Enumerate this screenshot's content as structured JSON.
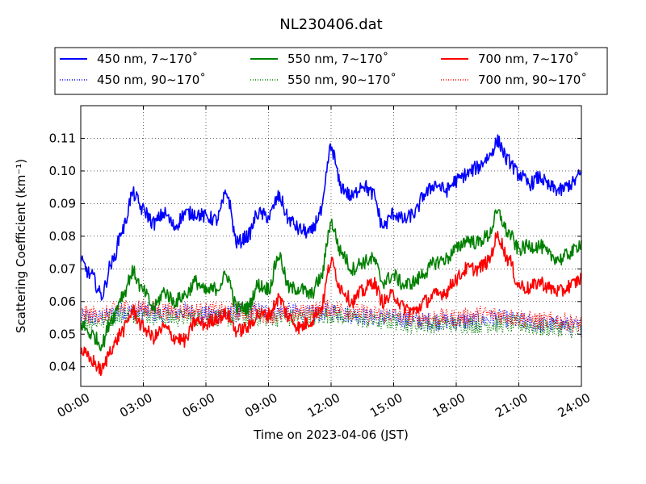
{
  "chart_data": {
    "type": "line",
    "title": "NL230406.dat",
    "xlabel": "Time on 2023-04-06 (JST)",
    "ylabel": "Scattering Coefficient (km⁻¹)",
    "xlim": [
      "00:00",
      "24:00"
    ],
    "ylim": [
      0.034,
      0.12
    ],
    "x_ticks": [
      "00:00",
      "03:00",
      "06:00",
      "09:00",
      "12:00",
      "15:00",
      "18:00",
      "21:00",
      "24:00"
    ],
    "y_ticks": [
      "0.04",
      "0.05",
      "0.06",
      "0.07",
      "0.08",
      "0.09",
      "0.10",
      "0.11"
    ],
    "grid": true,
    "legend_position": "top",
    "series": [
      {
        "name": "450 nm, 7∼170˚",
        "color": "#0000ff",
        "style": "solid",
        "x": [
          "00:00",
          "00:30",
          "01:00",
          "01:30",
          "02:00",
          "02:30",
          "03:00",
          "03:30",
          "04:00",
          "04:30",
          "05:00",
          "05:30",
          "06:00",
          "06:30",
          "07:00",
          "07:30",
          "08:00",
          "08:30",
          "09:00",
          "09:30",
          "10:00",
          "10:30",
          "11:00",
          "11:30",
          "12:00",
          "12:30",
          "13:00",
          "13:30",
          "14:00",
          "14:30",
          "15:00",
          "15:30",
          "16:00",
          "16:30",
          "17:00",
          "17:30",
          "18:00",
          "18:30",
          "19:00",
          "19:30",
          "20:00",
          "20:30",
          "21:00",
          "21:30",
          "22:00",
          "22:30",
          "23:00",
          "23:30",
          "24:00"
        ],
        "values": [
          0.072,
          0.068,
          0.062,
          0.072,
          0.082,
          0.093,
          0.088,
          0.084,
          0.087,
          0.083,
          0.087,
          0.087,
          0.086,
          0.085,
          0.093,
          0.078,
          0.08,
          0.087,
          0.086,
          0.092,
          0.085,
          0.082,
          0.081,
          0.087,
          0.107,
          0.095,
          0.092,
          0.096,
          0.093,
          0.083,
          0.087,
          0.085,
          0.087,
          0.093,
          0.096,
          0.094,
          0.097,
          0.099,
          0.101,
          0.104,
          0.109,
          0.103,
          0.099,
          0.096,
          0.098,
          0.095,
          0.094,
          0.096,
          0.099
        ]
      },
      {
        "name": "550 nm, 7∼170˚",
        "color": "#008000",
        "style": "solid",
        "x": [
          "00:00",
          "00:30",
          "01:00",
          "01:30",
          "02:00",
          "02:30",
          "03:00",
          "03:30",
          "04:00",
          "04:30",
          "05:00",
          "05:30",
          "06:00",
          "06:30",
          "07:00",
          "07:30",
          "08:00",
          "08:30",
          "09:00",
          "09:30",
          "10:00",
          "10:30",
          "11:00",
          "11:30",
          "12:00",
          "12:30",
          "13:00",
          "13:30",
          "14:00",
          "14:30",
          "15:00",
          "15:30",
          "16:00",
          "16:30",
          "17:00",
          "17:30",
          "18:00",
          "18:30",
          "19:00",
          "19:30",
          "20:00",
          "20:30",
          "21:00",
          "21:30",
          "22:00",
          "22:30",
          "23:00",
          "23:30",
          "24:00"
        ],
        "values": [
          0.053,
          0.05,
          0.047,
          0.055,
          0.062,
          0.069,
          0.063,
          0.058,
          0.063,
          0.06,
          0.062,
          0.066,
          0.063,
          0.064,
          0.068,
          0.058,
          0.058,
          0.065,
          0.064,
          0.074,
          0.064,
          0.064,
          0.062,
          0.067,
          0.084,
          0.075,
          0.07,
          0.072,
          0.073,
          0.066,
          0.068,
          0.065,
          0.066,
          0.069,
          0.072,
          0.073,
          0.076,
          0.079,
          0.078,
          0.08,
          0.087,
          0.081,
          0.076,
          0.077,
          0.077,
          0.074,
          0.073,
          0.075,
          0.078
        ]
      },
      {
        "name": "700 nm, 7∼170˚",
        "color": "#ff0000",
        "style": "solid",
        "x": [
          "00:00",
          "00:30",
          "01:00",
          "01:30",
          "02:00",
          "02:30",
          "03:00",
          "03:30",
          "04:00",
          "04:30",
          "05:00",
          "05:30",
          "06:00",
          "06:30",
          "07:00",
          "07:30",
          "08:00",
          "08:30",
          "09:00",
          "09:30",
          "10:00",
          "10:30",
          "11:00",
          "11:30",
          "12:00",
          "12:30",
          "13:00",
          "13:30",
          "14:00",
          "14:30",
          "15:00",
          "15:30",
          "16:00",
          "16:30",
          "17:00",
          "17:30",
          "18:00",
          "18:30",
          "19:00",
          "19:30",
          "20:00",
          "20:30",
          "21:00",
          "21:30",
          "22:00",
          "22:30",
          "23:00",
          "23:30",
          "24:00"
        ],
        "values": [
          0.045,
          0.042,
          0.039,
          0.046,
          0.051,
          0.057,
          0.052,
          0.049,
          0.052,
          0.049,
          0.048,
          0.054,
          0.053,
          0.055,
          0.056,
          0.051,
          0.052,
          0.056,
          0.056,
          0.061,
          0.055,
          0.052,
          0.054,
          0.058,
          0.072,
          0.064,
          0.06,
          0.063,
          0.066,
          0.06,
          0.062,
          0.058,
          0.057,
          0.06,
          0.062,
          0.063,
          0.067,
          0.07,
          0.07,
          0.072,
          0.08,
          0.073,
          0.065,
          0.064,
          0.066,
          0.064,
          0.063,
          0.065,
          0.067
        ]
      },
      {
        "name": "450 nm, 90∼170˚",
        "color": "#0000ff",
        "style": "dotted",
        "x": [
          "00:00",
          "01:00",
          "02:00",
          "03:00",
          "04:00",
          "05:00",
          "06:00",
          "07:00",
          "08:00",
          "09:00",
          "10:00",
          "11:00",
          "12:00",
          "13:00",
          "14:00",
          "15:00",
          "16:00",
          "17:00",
          "18:00",
          "19:00",
          "20:00",
          "21:00",
          "22:00",
          "23:00",
          "24:00"
        ],
        "values": [
          0.055,
          0.055,
          0.057,
          0.057,
          0.056,
          0.057,
          0.056,
          0.056,
          0.057,
          0.057,
          0.057,
          0.056,
          0.057,
          0.056,
          0.055,
          0.055,
          0.054,
          0.054,
          0.054,
          0.054,
          0.055,
          0.054,
          0.053,
          0.053,
          0.052
        ]
      },
      {
        "name": "550 nm, 90∼170˚",
        "color": "#008000",
        "style": "dotted",
        "x": [
          "00:00",
          "01:00",
          "02:00",
          "03:00",
          "04:00",
          "05:00",
          "06:00",
          "07:00",
          "08:00",
          "09:00",
          "10:00",
          "11:00",
          "12:00",
          "13:00",
          "14:00",
          "15:00",
          "16:00",
          "17:00",
          "18:00",
          "19:00",
          "20:00",
          "21:00",
          "22:00",
          "23:00",
          "24:00"
        ],
        "values": [
          0.054,
          0.054,
          0.056,
          0.056,
          0.055,
          0.055,
          0.055,
          0.055,
          0.055,
          0.055,
          0.055,
          0.055,
          0.056,
          0.055,
          0.054,
          0.054,
          0.053,
          0.053,
          0.053,
          0.053,
          0.053,
          0.053,
          0.052,
          0.052,
          0.051
        ]
      },
      {
        "name": "700 nm, 90∼170˚",
        "color": "#ff0000",
        "style": "dotted",
        "x": [
          "00:00",
          "01:00",
          "02:00",
          "03:00",
          "04:00",
          "05:00",
          "06:00",
          "07:00",
          "08:00",
          "09:00",
          "10:00",
          "11:00",
          "12:00",
          "13:00",
          "14:00",
          "15:00",
          "16:00",
          "17:00",
          "18:00",
          "19:00",
          "20:00",
          "21:00",
          "22:00",
          "23:00",
          "24:00"
        ],
        "values": [
          0.056,
          0.056,
          0.058,
          0.058,
          0.057,
          0.057,
          0.057,
          0.057,
          0.057,
          0.056,
          0.056,
          0.057,
          0.058,
          0.057,
          0.056,
          0.056,
          0.055,
          0.055,
          0.055,
          0.056,
          0.056,
          0.055,
          0.054,
          0.054,
          0.053
        ]
      }
    ]
  }
}
